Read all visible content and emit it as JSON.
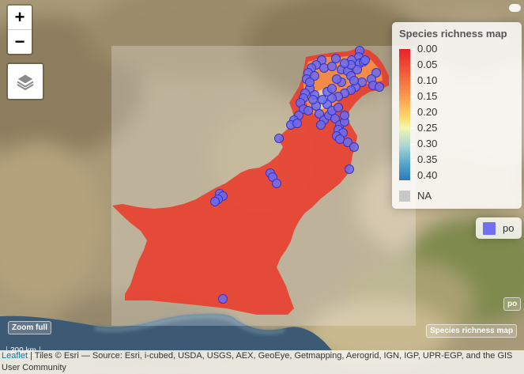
{
  "controls": {
    "zoom_in": "+",
    "zoom_out": "−",
    "layers_icon": "layers-icon",
    "zoom_full": "Zoom full"
  },
  "legend": {
    "title": "Species richness map",
    "ticks": [
      "0.00",
      "0.05",
      "0.10",
      "0.15",
      "0.20",
      "0.25",
      "0.30",
      "0.35",
      "0.40"
    ],
    "na_label": "NA",
    "na_color": "#c8c8c8",
    "ramp_colors": [
      "#e8222a",
      "#f35b3a",
      "#f89a4c",
      "#fdd96a",
      "#f3f6b0",
      "#a8d6d3",
      "#52a3cc",
      "#2f7ab8"
    ]
  },
  "points_legend": {
    "label": "po",
    "color": "#7070f0"
  },
  "layer_toggles": {
    "po": "po",
    "species": "Species richness map"
  },
  "scale": "300 km",
  "attribution": {
    "leaflet": "Leaflet",
    "text": " | Tiles © Esri — Source: Esri, i-cubed, USDA, USGS, AEX, GeoEye, Getmapping, Aerogrid, IGN, IGP, UPR-EGP, and the GIS User Community"
  },
  "colors": {
    "raster": "#ea3b2b",
    "point_fill": "#6b6bf0",
    "point_stroke": "#3434c4"
  }
}
